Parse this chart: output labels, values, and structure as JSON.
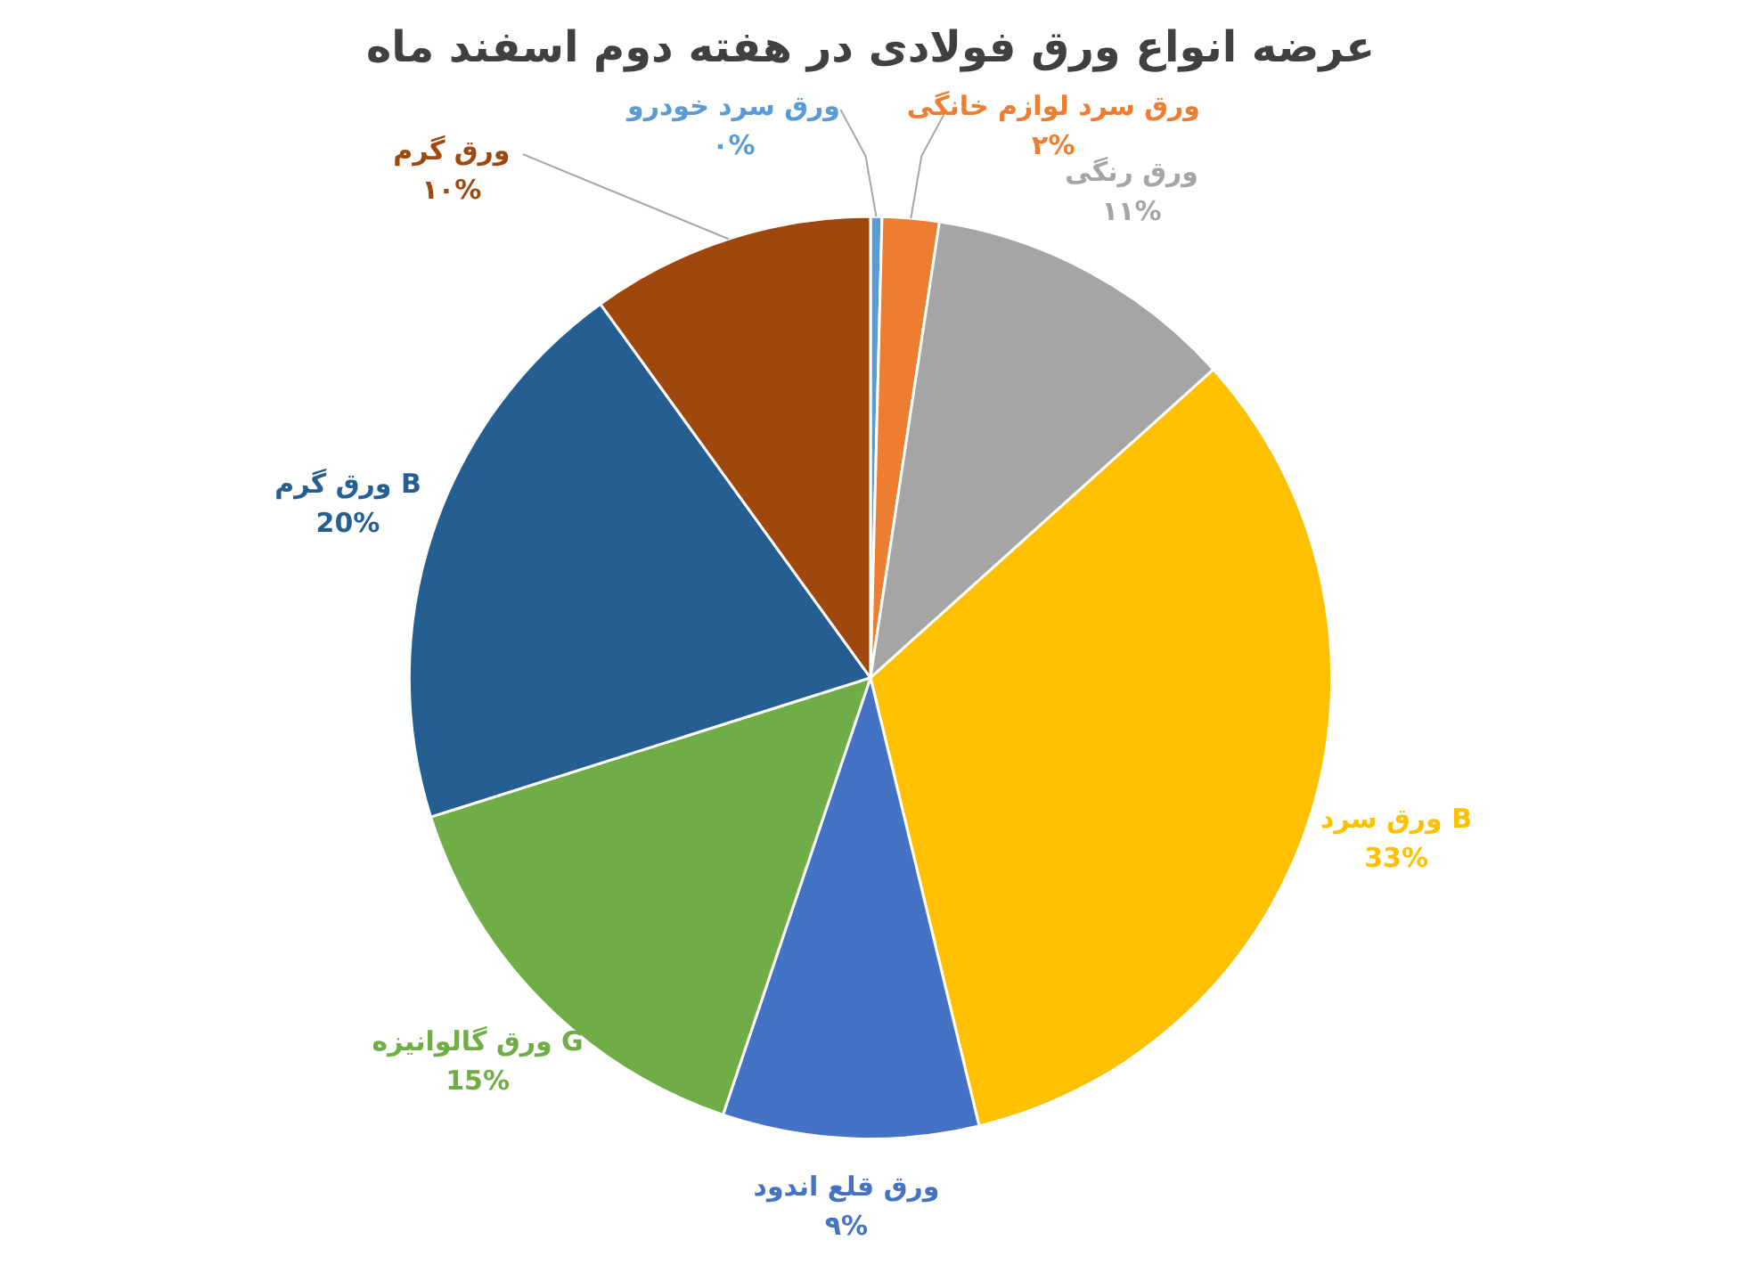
{
  "chart_data": {
    "type": "pie",
    "title": "عرضه انواع ورق فولادی در هفته دوم اسفند ماه",
    "categories": [
      "ورق سرد خودرو",
      "ورق سرد لوازم خانگی",
      "ورق رنگی",
      "ورق سرد B",
      "ورق قلع اندود",
      "ورق گالوانیزه G",
      "ورق گرم B",
      "ورق گرم"
    ],
    "values": [
      0.4,
      2,
      11,
      33,
      9,
      15,
      20,
      10
    ],
    "value_labels": [
      "۰%",
      "۲%",
      "۱۱%",
      "33%",
      "۹%",
      "15%",
      "20%",
      "۱۰%"
    ],
    "colors": [
      "#5b9bd5",
      "#ed7d31",
      "#a5a5a5",
      "#ffc000",
      "#4472c4",
      "#70ad47",
      "#255e91",
      "#9e480e"
    ],
    "legend": false
  }
}
